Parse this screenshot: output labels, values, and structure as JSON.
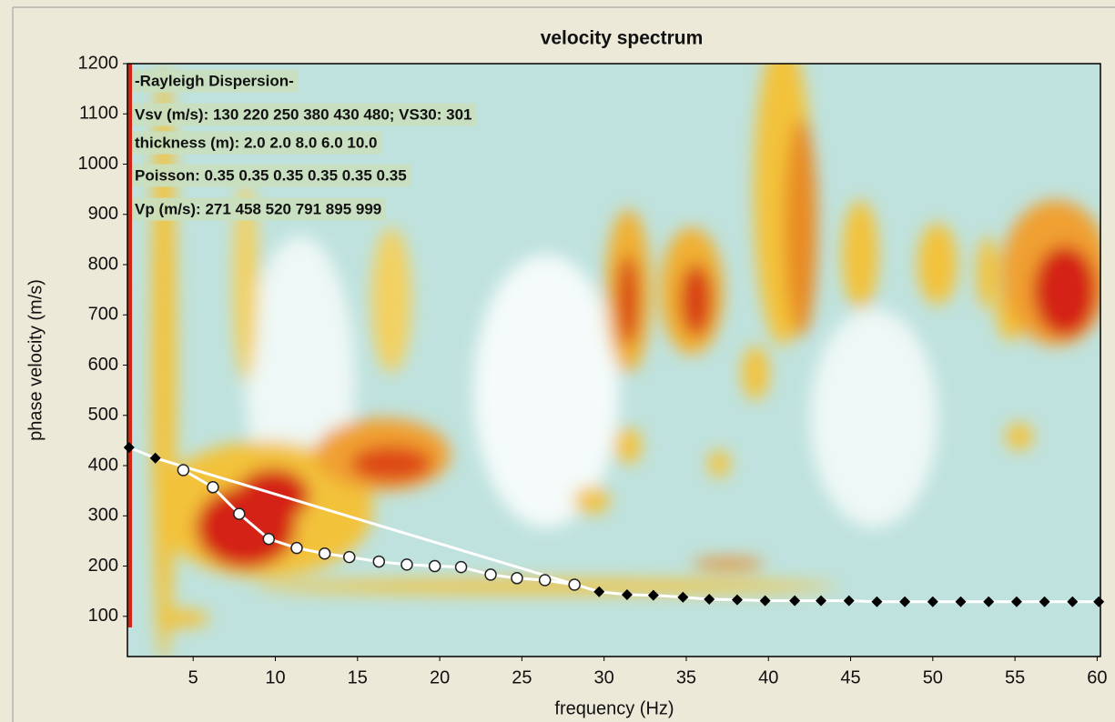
{
  "chart_data": {
    "type": "scatter",
    "title": "velocity spectrum",
    "x_label": "frequency (Hz)",
    "y_label": "phase velocity (m/s)",
    "annotations": [
      "-Rayleigh Dispersion-",
      "Vsv (m/s): 130  220  250  380  430  480; VS30: 301",
      "thickness (m): 2.0    2.0    8.0    6.0    10.0",
      "Poisson: 0.35  0.35  0.35  0.35  0.35  0.35",
      "Vp (m/s): 271  458  520  791  895  999"
    ],
    "xlim": [
      1,
      60.2
    ],
    "ylim": [
      20,
      1200
    ],
    "xticks": [
      5,
      10,
      15,
      20,
      25,
      30,
      35,
      40,
      45,
      50,
      55,
      60
    ],
    "yticks": [
      100,
      200,
      300,
      400,
      500,
      600,
      700,
      800,
      900,
      1000,
      1100,
      1200
    ],
    "series": [
      {
        "color": "#ffffff",
        "marker": "circle",
        "x": [
          4.4,
          6.2,
          7.8,
          9.6,
          11.3,
          13.0,
          14.5,
          16.3,
          18.0,
          19.7,
          21.3,
          23.1,
          24.7,
          26.4,
          28.2
        ],
        "values": [
          391,
          357,
          304,
          254,
          236,
          225,
          218,
          209,
          203,
          200,
          198,
          183,
          176,
          172,
          163
        ]
      },
      {
        "color": "#000000",
        "marker": "diamond",
        "x": [
          1.1,
          2.7,
          29.7,
          31.4,
          33.0,
          34.8,
          36.4,
          38.1,
          39.8,
          41.6,
          43.2,
          44.9,
          46.6,
          48.3,
          50.0,
          51.7,
          53.4,
          55.1,
          56.8,
          58.5,
          60.1
        ],
        "values": [
          436,
          415,
          149,
          143,
          142,
          138,
          134,
          133,
          131,
          131,
          131,
          131,
          129,
          129,
          129,
          129,
          129,
          129,
          129,
          129,
          129
        ]
      }
    ]
  }
}
